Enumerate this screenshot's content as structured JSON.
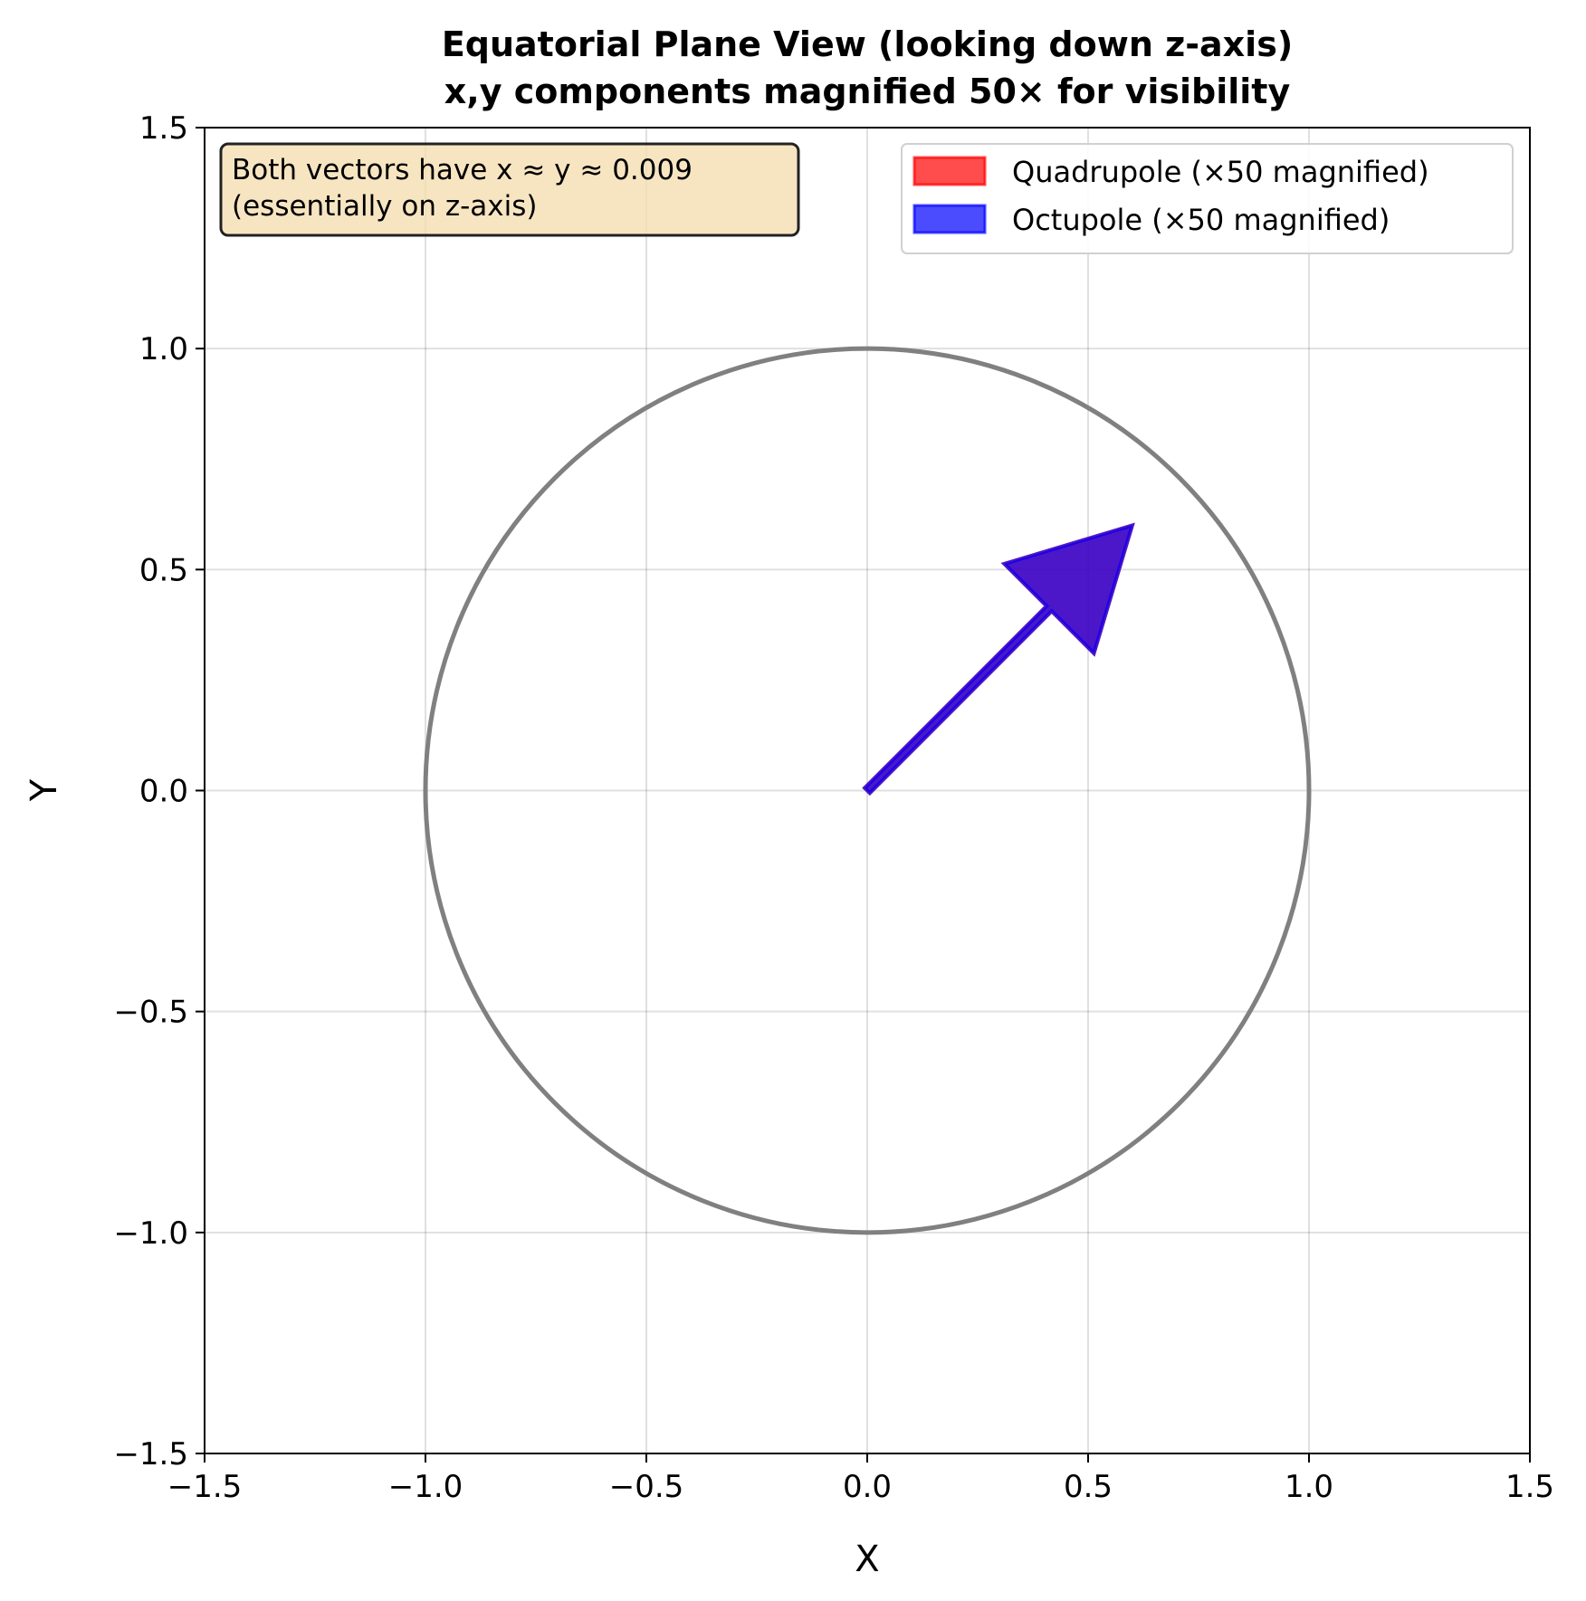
{
  "chart_data": {
    "type": "scatter",
    "title": "Equatorial Plane View (looking down z-axis)",
    "subtitle": "x,y components magnified 50× for visibility",
    "xlabel": "X",
    "ylabel": "Y",
    "xlim": [
      -1.5,
      1.5
    ],
    "ylim": [
      -1.5,
      1.5
    ],
    "xticks": [
      -1.5,
      -1.0,
      -0.5,
      0.0,
      0.5,
      1.0,
      1.5
    ],
    "yticks": [
      -1.5,
      -1.0,
      -0.5,
      0.0,
      0.5,
      1.0,
      1.5
    ],
    "xtick_labels": [
      "−1.5",
      "−1.0",
      "−0.5",
      "0.0",
      "0.5",
      "1.0",
      "1.5"
    ],
    "ytick_labels": [
      "−1.5",
      "−1.0",
      "−0.5",
      "0.0",
      "0.5",
      "1.0",
      "1.5"
    ],
    "grid": true,
    "legend_position": "top-right",
    "unit_circle": {
      "radius": 1.0,
      "color": "#808080"
    },
    "series": [
      {
        "name": "Quadrupole (×50 magnified)",
        "color": "#ff0000",
        "x": [
          0.0,
          0.6
        ],
        "y": [
          0.0,
          0.6
        ]
      },
      {
        "name": "Octupole (×50 magnified)",
        "color": "#0000ff",
        "x": [
          0.0,
          0.6
        ],
        "y": [
          0.0,
          0.6
        ]
      }
    ],
    "annotation": {
      "lines": [
        "Both vectors have x ≈ y ≈ 0.009",
        "(essentially on z-axis)"
      ],
      "background": "#f5deb3",
      "position": "top-left"
    }
  }
}
